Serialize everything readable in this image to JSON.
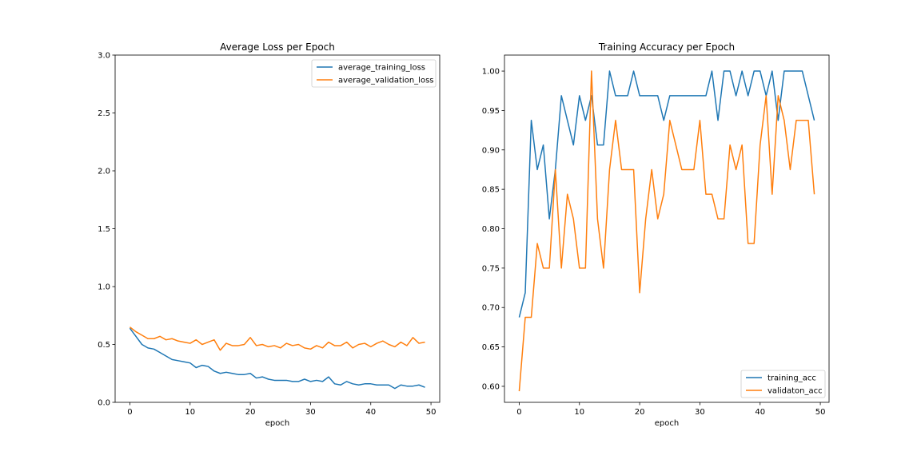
{
  "chart_data": [
    {
      "type": "line",
      "title": "Average Loss per Epoch",
      "xlabel": "epoch",
      "ylabel": "",
      "xlim": [
        -2.45,
        51.45
      ],
      "ylim": [
        0,
        3.0
      ],
      "xticks": [
        0,
        10,
        20,
        30,
        40,
        50
      ],
      "yticks": [
        0.0,
        0.5,
        1.0,
        1.5,
        2.0,
        2.5,
        3.0
      ],
      "ytick_format": 1,
      "grid": false,
      "legend_position": "top-right",
      "x": [
        0,
        1,
        2,
        3,
        4,
        5,
        6,
        7,
        8,
        9,
        10,
        11,
        12,
        13,
        14,
        15,
        16,
        17,
        18,
        19,
        20,
        21,
        22,
        23,
        24,
        25,
        26,
        27,
        28,
        29,
        30,
        31,
        32,
        33,
        34,
        35,
        36,
        37,
        38,
        39,
        40,
        41,
        42,
        43,
        44,
        45,
        46,
        47,
        48,
        49
      ],
      "series": [
        {
          "name": "average_training_loss",
          "color": "#1f77b4",
          "values": [
            0.64,
            0.57,
            0.5,
            0.47,
            0.46,
            0.43,
            0.4,
            0.37,
            0.36,
            0.35,
            0.34,
            0.3,
            0.32,
            0.31,
            0.27,
            0.25,
            0.26,
            0.25,
            0.24,
            0.24,
            0.25,
            0.21,
            0.22,
            0.2,
            0.19,
            0.19,
            0.19,
            0.18,
            0.18,
            0.2,
            0.18,
            0.19,
            0.18,
            0.22,
            0.16,
            0.15,
            0.18,
            0.16,
            0.15,
            0.16,
            0.16,
            0.15,
            0.15,
            0.15,
            0.12,
            0.15,
            0.14,
            0.14,
            0.15,
            0.13
          ]
        },
        {
          "name": "average_validation_loss",
          "color": "#ff7f0e",
          "values": [
            0.65,
            0.61,
            0.58,
            0.55,
            0.55,
            0.57,
            0.54,
            0.55,
            0.53,
            0.52,
            0.51,
            0.54,
            0.5,
            0.52,
            0.54,
            0.45,
            0.51,
            0.49,
            0.49,
            0.5,
            0.56,
            0.49,
            0.5,
            0.48,
            0.49,
            0.47,
            0.51,
            0.49,
            0.5,
            0.47,
            0.46,
            0.49,
            0.47,
            0.52,
            0.49,
            0.49,
            0.52,
            0.47,
            0.5,
            0.51,
            0.48,
            0.51,
            0.53,
            0.5,
            0.48,
            0.52,
            0.49,
            0.56,
            0.51,
            0.52
          ]
        }
      ]
    },
    {
      "type": "line",
      "title": "Training Accuracy per Epoch",
      "xlabel": "epoch",
      "ylabel": "",
      "xlim": [
        -2.45,
        51.45
      ],
      "ylim": [
        0.5796875,
        1.0203125
      ],
      "xticks": [
        0,
        10,
        20,
        30,
        40,
        50
      ],
      "yticks": [
        0.6,
        0.65,
        0.7,
        0.75,
        0.8,
        0.85,
        0.9,
        0.95,
        1.0
      ],
      "ytick_format": 2,
      "grid": false,
      "legend_position": "bottom-right",
      "x": [
        0,
        1,
        2,
        3,
        4,
        5,
        6,
        7,
        8,
        9,
        10,
        11,
        12,
        13,
        14,
        15,
        16,
        17,
        18,
        19,
        20,
        21,
        22,
        23,
        24,
        25,
        26,
        27,
        28,
        29,
        30,
        31,
        32,
        33,
        34,
        35,
        36,
        37,
        38,
        39,
        40,
        41,
        42,
        43,
        44,
        45,
        46,
        47,
        48,
        49
      ],
      "series": [
        {
          "name": "training_acc",
          "color": "#1f77b4",
          "values": [
            0.6875,
            0.71875,
            0.9375,
            0.875,
            0.90625,
            0.8125,
            0.875,
            0.96875,
            0.9375,
            0.90625,
            0.96875,
            0.9375,
            0.96875,
            0.90625,
            0.90625,
            1.0,
            0.96875,
            0.96875,
            0.96875,
            1.0,
            0.96875,
            0.96875,
            0.96875,
            0.96875,
            0.9375,
            0.96875,
            0.96875,
            0.96875,
            0.96875,
            0.96875,
            0.96875,
            0.96875,
            1.0,
            0.9375,
            1.0,
            1.0,
            0.96875,
            1.0,
            0.96875,
            1.0,
            1.0,
            0.96875,
            1.0,
            0.9375,
            1.0,
            1.0,
            1.0,
            1.0,
            0.96875,
            0.9375
          ]
        },
        {
          "name": "validaton_acc",
          "color": "#ff7f0e",
          "values": [
            0.59375,
            0.6875,
            0.6875,
            0.78125,
            0.75,
            0.75,
            0.875,
            0.75,
            0.84375,
            0.8125,
            0.75,
            0.75,
            1.0,
            0.8125,
            0.75,
            0.875,
            0.9375,
            0.875,
            0.875,
            0.875,
            0.71875,
            0.8125,
            0.875,
            0.8125,
            0.84375,
            0.9375,
            0.90625,
            0.875,
            0.875,
            0.875,
            0.9375,
            0.84375,
            0.84375,
            0.8125,
            0.8125,
            0.90625,
            0.875,
            0.90625,
            0.78125,
            0.78125,
            0.90625,
            0.96875,
            0.84375,
            0.96875,
            0.9375,
            0.875,
            0.9375,
            0.9375,
            0.9375,
            0.84375
          ]
        }
      ]
    }
  ]
}
